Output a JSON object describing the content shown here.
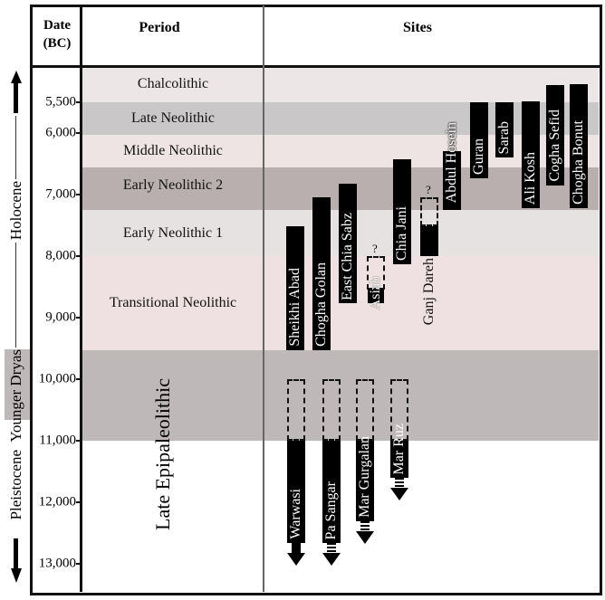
{
  "header": {
    "date": "Date",
    "date_unit": "(BC)",
    "period": "Period",
    "sites": "Sites"
  },
  "epochs": {
    "holocene": "Holocene",
    "younger_dryas": "Younger Dryas",
    "pleistocene": "Pleistocene"
  },
  "late_epipaleolithic": "Late Epipaleolithic",
  "ticks": [
    "5,500",
    "6,000",
    "7,000",
    "8,000",
    "9,000",
    "10,000",
    "11,000",
    "12,000",
    "13,000"
  ],
  "tick_values": [
    5500,
    6000,
    7000,
    8000,
    9000,
    10000,
    11000,
    12000,
    13000
  ],
  "periods": [
    {
      "label": "Chalcolithic",
      "from": 4600,
      "to": 5500,
      "color": "#ece6e6"
    },
    {
      "label": "Late Neolithic",
      "from": 5500,
      "to": 6030,
      "color": "#c9c7c7"
    },
    {
      "label": "Middle Neolithic",
      "from": 6030,
      "to": 6560,
      "color": "#efe4e4"
    },
    {
      "label": "Early Neolithic 2",
      "from": 6560,
      "to": 7250,
      "color": "#b9afaf"
    },
    {
      "label": "Early Neolithic 1",
      "from": 7250,
      "to": 8000,
      "color": "#e6e2e2"
    },
    {
      "label": "Transitional Neolithic",
      "from": 8000,
      "to": 9530,
      "color": "#efe1e1"
    },
    {
      "label": "",
      "from": 9530,
      "to": 11000,
      "color": "#bfb8b8"
    }
  ],
  "sites": [
    {
      "name": "Sheikhi Abad",
      "from": 7520,
      "to": 9530
    },
    {
      "name": "Chogha Golan",
      "from": 7050,
      "to": 9530
    },
    {
      "name": "East Chia Sabz",
      "from": 6830,
      "to": 8770
    },
    {
      "name": "Asiab",
      "from": 8000,
      "to": 8770,
      "uncertain_from": 8000,
      "uncertain_to": 8550,
      "query": "?"
    },
    {
      "name": "Chia Jani",
      "from": 6420,
      "to": 8130
    },
    {
      "name": "Ganj Dareh",
      "from": 7520,
      "to": 8000,
      "uncertain_from": 7050,
      "uncertain_to": 7520,
      "query": "?"
    },
    {
      "name": "Abdul Hosein",
      "from": 6290,
      "to": 7250
    },
    {
      "name": "Guran",
      "from": 5500,
      "to": 6740
    },
    {
      "name": "Sarab",
      "from": 5500,
      "to": 6400
    },
    {
      "name": "Ali Kosh",
      "from": 5490,
      "to": 7220
    },
    {
      "name": "Cogha Sefid",
      "from": 5220,
      "to": 6850
    },
    {
      "name": "Chogha Bonut",
      "from": 5200,
      "to": 7220
    }
  ],
  "epipaleolithic_sites": [
    {
      "name": "Warwasi",
      "uncertain_from": 10000,
      "from": 11000,
      "to": 13000,
      "arrow": "solid"
    },
    {
      "name": "Pa Sangar",
      "uncertain_from": 10000,
      "from": 11000,
      "to": 13000,
      "arrow": "striped"
    },
    {
      "name": "Mar Gurgalan",
      "uncertain_from": 10000,
      "from": 11000,
      "to": 12670,
      "arrow": "striped"
    },
    {
      "name": "Mar Ruz",
      "uncertain_from": 10000,
      "from": 11000,
      "to": 11970,
      "arrow": "striped"
    }
  ]
}
